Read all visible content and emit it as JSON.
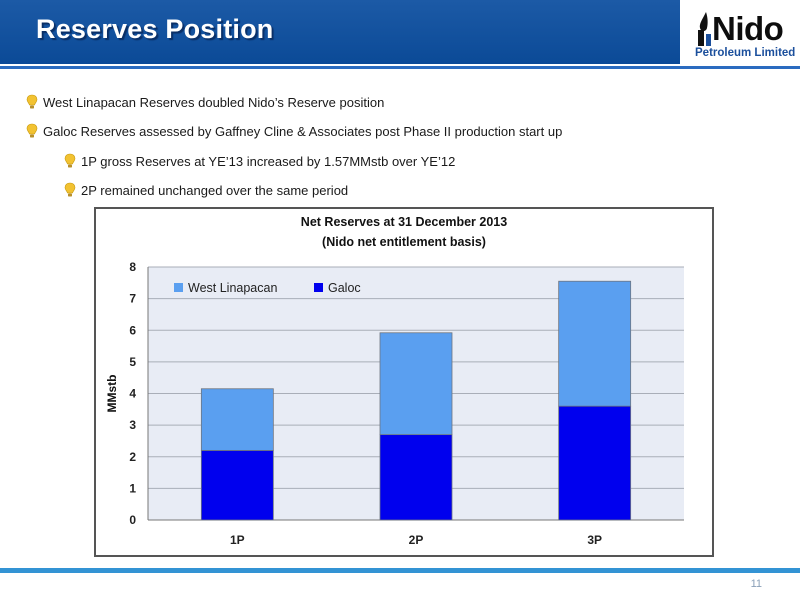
{
  "header": {
    "title": "Reserves Position"
  },
  "logo": {
    "name": "Nido",
    "sub": "Petroleum Limited"
  },
  "bullets": [
    {
      "text": "West Linapacan Reserves doubled Nido’s Reserve position",
      "level": 1
    },
    {
      "text": "Galoc Reserves assessed by Gaffney Cline & Associates post Phase II production start up",
      "level": 1
    },
    {
      "text": "1P gross Reserves at YE’13 increased by 1.57MMstb over YE’12",
      "level": 2
    },
    {
      "text": "2P remained unchanged over the same period",
      "level": 2
    }
  ],
  "colors": {
    "header": "#0b4a97",
    "galoc": "#0000ee",
    "west_linapacan": "#5a9ff0",
    "plot_bg": "#e8ecf5",
    "bullet_icon": "#f2c231"
  },
  "chart_data": {
    "type": "bar",
    "stacked": true,
    "title": "Net Reserves at 31 December 2013",
    "subtitle": "(Nido net entitlement basis)",
    "xlabel": "",
    "ylabel": "MMstb",
    "categories": [
      "1P",
      "2P",
      "3P"
    ],
    "series": [
      {
        "name": "Galoc",
        "values": [
          2.2,
          2.7,
          3.6
        ],
        "color": "#0000ee"
      },
      {
        "name": "West Linapacan",
        "values": [
          1.95,
          3.22,
          3.95
        ],
        "color": "#5a9ff0"
      }
    ],
    "ylim": [
      0,
      8
    ],
    "yticks": [
      "0",
      "1",
      "2",
      "3",
      "4",
      "5",
      "6",
      "7",
      "8"
    ],
    "grid": true,
    "legend": "top-left",
    "legend_order": [
      "West Linapacan",
      "Galoc"
    ]
  },
  "page_number": "11"
}
